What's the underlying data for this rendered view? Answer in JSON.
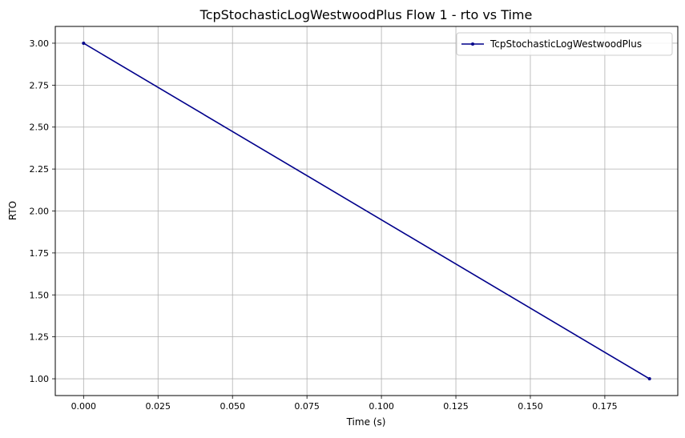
{
  "chart_data": {
    "type": "line",
    "title": "TcpStochasticLogWestwoodPlus Flow 1 - rto vs Time",
    "xlabel": "Time (s)",
    "ylabel": "RTO",
    "xlim": [
      -0.0095,
      0.1995
    ],
    "ylim": [
      0.9,
      3.1
    ],
    "x_ticks": [
      0.0,
      0.025,
      0.05,
      0.075,
      0.1,
      0.125,
      0.15,
      0.175
    ],
    "x_tick_labels": [
      "0.000",
      "0.025",
      "0.050",
      "0.075",
      "0.100",
      "0.125",
      "0.150",
      "0.175"
    ],
    "y_ticks": [
      1.0,
      1.25,
      1.5,
      1.75,
      2.0,
      2.25,
      2.5,
      2.75,
      3.0
    ],
    "y_tick_labels": [
      "1.00",
      "1.25",
      "1.50",
      "1.75",
      "2.00",
      "2.25",
      "2.50",
      "2.75",
      "3.00"
    ],
    "grid": true,
    "legend_position": "top-right",
    "series": [
      {
        "name": "TcpStochasticLogWestwoodPlus",
        "color": "#00008b",
        "marker": "dot",
        "x": [
          0.0,
          0.19
        ],
        "y": [
          3.0,
          1.0
        ]
      }
    ]
  }
}
